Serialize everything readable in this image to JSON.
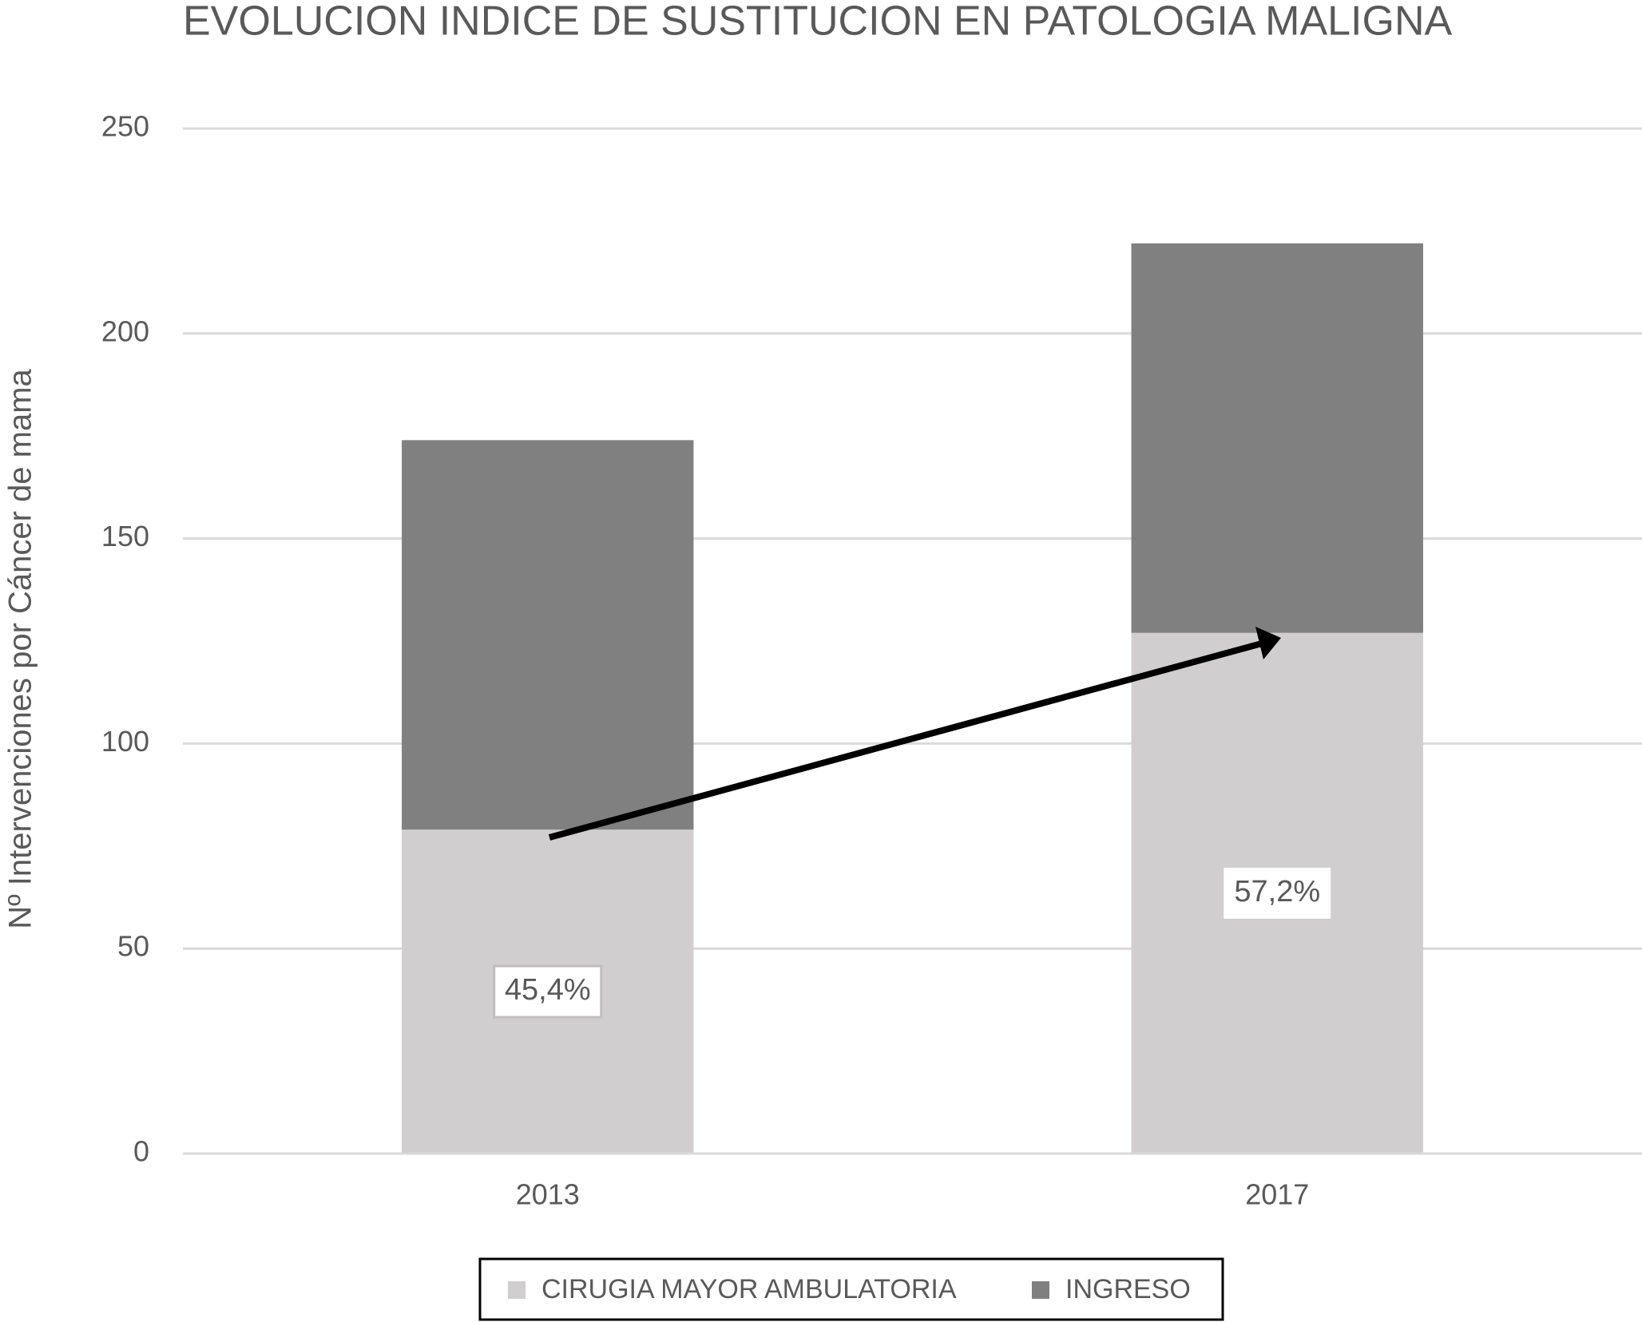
{
  "chart_data": {
    "type": "stacked_bar",
    "title": "EVOLUCION INDICE DE SUSTITUCION EN PATOLOGIA MALIGNA",
    "y_label": "Nº Intervenciones  por Cáncer de mama",
    "categories": [
      "2013",
      "2017"
    ],
    "series": [
      {
        "name": "CIRUGIA MAYOR AMBULATORIA",
        "color": "#d0cecf",
        "values": [
          79,
          127
        ]
      },
      {
        "name": "INGRESO",
        "color": "#7f807f",
        "values": [
          95,
          95
        ]
      }
    ],
    "annotations": [
      "45,4%",
      "57,2%"
    ],
    "ylim": [
      0,
      250
    ],
    "yticks": [
      0,
      50,
      100,
      150,
      200,
      250
    ],
    "grid": true,
    "legend": "bottom"
  }
}
